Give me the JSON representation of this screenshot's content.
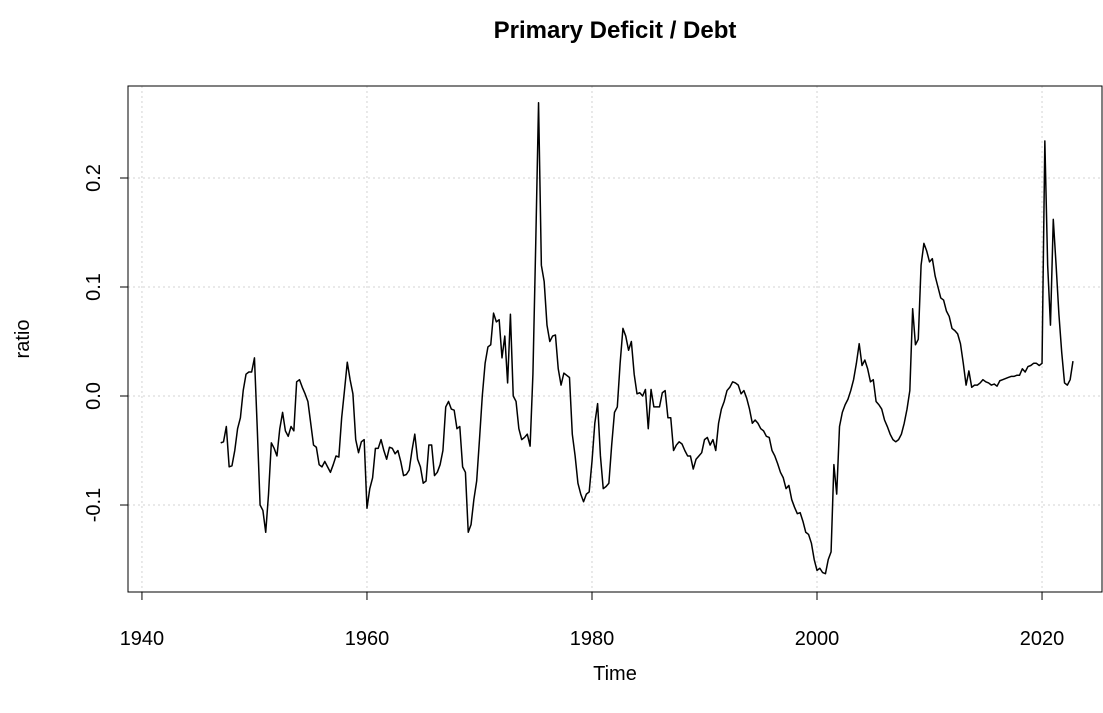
{
  "chart_data": {
    "type": "line",
    "title": "Primary Deficit / Debt",
    "x_label": "Time",
    "y_label": "ratio",
    "color": "#000000",
    "grid": true,
    "xlim": [
      1938.76,
      2025.33
    ],
    "ylim": [
      -0.1798,
      0.2844
    ],
    "xticks": [
      1940,
      1960,
      1980,
      2000,
      2020
    ],
    "yticks": [
      -0.1,
      {
        "value": 0,
        "label": "0.0"
      },
      0.1,
      0.2
    ],
    "x": [
      1947,
      1947.25,
      1947.5,
      1947.75,
      1948,
      1948.25,
      1948.5,
      1948.75,
      1949,
      1949.25,
      1949.5,
      1949.75,
      1950,
      1950.25,
      1950.5,
      1950.75,
      1951,
      1951.25,
      1951.5,
      1951.75,
      1952,
      1952.25,
      1952.5,
      1952.75,
      1953,
      1953.25,
      1953.5,
      1953.75,
      1954,
      1954.25,
      1954.5,
      1954.75,
      1955,
      1955.25,
      1955.5,
      1955.75,
      1956,
      1956.25,
      1956.5,
      1956.75,
      1957,
      1957.25,
      1957.5,
      1957.75,
      1958,
      1958.25,
      1958.5,
      1958.75,
      1959,
      1959.25,
      1959.5,
      1959.75,
      1960,
      1960.25,
      1960.5,
      1960.75,
      1961,
      1961.25,
      1961.5,
      1961.75,
      1962,
      1962.25,
      1962.5,
      1962.75,
      1963,
      1963.25,
      1963.5,
      1963.75,
      1964,
      1964.25,
      1964.5,
      1964.75,
      1965,
      1965.25,
      1965.5,
      1965.75,
      1966,
      1966.25,
      1966.5,
      1966.75,
      1967,
      1967.25,
      1967.5,
      1967.75,
      1968,
      1968.25,
      1968.5,
      1968.75,
      1969,
      1969.25,
      1969.5,
      1969.75,
      1970,
      1970.25,
      1970.5,
      1970.75,
      1971,
      1971.25,
      1971.5,
      1971.75,
      1972,
      1972.25,
      1972.5,
      1972.75,
      1973,
      1973.25,
      1973.5,
      1973.75,
      1974,
      1974.25,
      1974.5,
      1974.75,
      1975,
      1975.25,
      1975.5,
      1975.75,
      1976,
      1976.25,
      1976.5,
      1976.75,
      1977,
      1977.25,
      1977.5,
      1977.75,
      1978,
      1978.25,
      1978.5,
      1978.75,
      1979,
      1979.25,
      1979.5,
      1979.75,
      1980,
      1980.25,
      1980.5,
      1980.75,
      1981,
      1981.25,
      1981.5,
      1981.75,
      1982,
      1982.25,
      1982.5,
      1982.75,
      1983,
      1983.25,
      1983.5,
      1983.75,
      1984,
      1984.25,
      1984.5,
      1984.75,
      1985,
      1985.25,
      1985.5,
      1985.75,
      1986,
      1986.25,
      1986.5,
      1986.75,
      1987,
      1987.25,
      1987.5,
      1987.75,
      1988,
      1988.25,
      1988.5,
      1988.75,
      1989,
      1989.25,
      1989.5,
      1989.75,
      1990,
      1990.25,
      1990.5,
      1990.75,
      1991,
      1991.25,
      1991.5,
      1991.75,
      1992,
      1992.25,
      1992.5,
      1992.75,
      1993,
      1993.25,
      1993.5,
      1993.75,
      1994,
      1994.25,
      1994.5,
      1994.75,
      1995,
      1995.25,
      1995.5,
      1995.75,
      1996,
      1996.25,
      1996.5,
      1996.75,
      1997,
      1997.25,
      1997.5,
      1997.75,
      1998,
      1998.25,
      1998.5,
      1998.75,
      1999,
      1999.25,
      1999.5,
      1999.75,
      2000,
      2000.25,
      2000.5,
      2000.75,
      2001,
      2001.25,
      2001.5,
      2001.75,
      2002,
      2002.25,
      2002.5,
      2002.75,
      2003,
      2003.25,
      2003.5,
      2003.75,
      2004,
      2004.25,
      2004.5,
      2004.75,
      2005,
      2005.25,
      2005.5,
      2005.75,
      2006,
      2006.25,
      2006.5,
      2006.75,
      2007,
      2007.25,
      2007.5,
      2007.75,
      2008,
      2008.25,
      2008.5,
      2008.75,
      2009,
      2009.25,
      2009.5,
      2009.75,
      2010,
      2010.25,
      2010.5,
      2010.75,
      2011,
      2011.25,
      2011.5,
      2011.75,
      2012,
      2012.25,
      2012.5,
      2012.75,
      2013,
      2013.25,
      2013.5,
      2013.75,
      2014,
      2014.25,
      2014.5,
      2014.75,
      2015,
      2015.25,
      2015.5,
      2015.75,
      2016,
      2016.25,
      2016.5,
      2016.75,
      2017,
      2017.25,
      2017.5,
      2017.75,
      2018,
      2018.25,
      2018.5,
      2018.75,
      2019,
      2019.25,
      2019.5,
      2019.75,
      2020,
      2020.25,
      2020.5,
      2020.75,
      2021,
      2021.25,
      2021.5,
      2021.75,
      2022,
      2022.25,
      2022.5,
      2022.75
    ],
    "values": [
      -0.043,
      -0.042,
      -0.028,
      -0.065,
      -0.064,
      -0.05,
      -0.03,
      -0.02,
      0.005,
      0.02,
      0.022,
      0.022,
      0.035,
      -0.03,
      -0.1,
      -0.105,
      -0.125,
      -0.09,
      -0.043,
      -0.048,
      -0.055,
      -0.03,
      -0.015,
      -0.032,
      -0.037,
      -0.028,
      -0.032,
      0.013,
      0.015,
      0.008,
      0.002,
      -0.005,
      -0.025,
      -0.045,
      -0.047,
      -0.063,
      -0.065,
      -0.06,
      -0.065,
      -0.07,
      -0.063,
      -0.055,
      -0.056,
      -0.02,
      0.005,
      0.031,
      0.015,
      0.002,
      -0.04,
      -0.052,
      -0.042,
      -0.04,
      -0.103,
      -0.085,
      -0.075,
      -0.048,
      -0.048,
      -0.04,
      -0.05,
      -0.058,
      -0.047,
      -0.048,
      -0.053,
      -0.05,
      -0.06,
      -0.073,
      -0.072,
      -0.068,
      -0.05,
      -0.035,
      -0.058,
      -0.065,
      -0.08,
      -0.078,
      -0.045,
      -0.045,
      -0.073,
      -0.07,
      -0.063,
      -0.05,
      -0.01,
      -0.005,
      -0.012,
      -0.013,
      -0.03,
      -0.028,
      -0.065,
      -0.07,
      -0.125,
      -0.118,
      -0.095,
      -0.078,
      -0.04,
      0.0,
      0.03,
      0.045,
      0.047,
      0.076,
      0.068,
      0.07,
      0.035,
      0.055,
      0.012,
      0.075,
      0.0,
      -0.005,
      -0.03,
      -0.04,
      -0.038,
      -0.035,
      -0.046,
      0.02,
      0.14,
      0.269,
      0.12,
      0.105,
      0.065,
      0.05,
      0.055,
      0.056,
      0.025,
      0.01,
      0.021,
      0.019,
      0.017,
      -0.035,
      -0.055,
      -0.08,
      -0.09,
      -0.097,
      -0.09,
      -0.088,
      -0.06,
      -0.025,
      -0.007,
      -0.055,
      -0.085,
      -0.083,
      -0.08,
      -0.045,
      -0.015,
      -0.01,
      0.03,
      0.062,
      0.055,
      0.042,
      0.05,
      0.02,
      0.002,
      0.003,
      0.0,
      0.006,
      -0.03,
      0.006,
      -0.01,
      -0.01,
      -0.01,
      0.003,
      0.005,
      -0.02,
      -0.02,
      -0.05,
      -0.045,
      -0.042,
      -0.044,
      -0.05,
      -0.055,
      -0.055,
      -0.067,
      -0.058,
      -0.055,
      -0.052,
      -0.04,
      -0.038,
      -0.045,
      -0.04,
      -0.05,
      -0.025,
      -0.012,
      -0.005,
      0.005,
      0.008,
      0.013,
      0.012,
      0.01,
      0.002,
      0.005,
      -0.002,
      -0.012,
      -0.025,
      -0.022,
      -0.025,
      -0.03,
      -0.032,
      -0.037,
      -0.038,
      -0.05,
      -0.055,
      -0.062,
      -0.07,
      -0.075,
      -0.085,
      -0.082,
      -0.095,
      -0.102,
      -0.108,
      -0.107,
      -0.115,
      -0.125,
      -0.127,
      -0.135,
      -0.15,
      -0.16,
      -0.158,
      -0.162,
      -0.163,
      -0.15,
      -0.143,
      -0.063,
      -0.09,
      -0.028,
      -0.015,
      -0.008,
      -0.003,
      0.005,
      0.015,
      0.03,
      0.048,
      0.028,
      0.033,
      0.025,
      0.013,
      0.015,
      -0.005,
      -0.008,
      -0.012,
      -0.022,
      -0.028,
      -0.035,
      -0.04,
      -0.042,
      -0.04,
      -0.035,
      -0.025,
      -0.012,
      0.005,
      0.08,
      0.047,
      0.052,
      0.12,
      0.14,
      0.133,
      0.123,
      0.126,
      0.11,
      0.1,
      0.09,
      0.088,
      0.078,
      0.073,
      0.062,
      0.06,
      0.057,
      0.048,
      0.03,
      0.01,
      0.023,
      0.008,
      0.01,
      0.01,
      0.012,
      0.015,
      0.013,
      0.012,
      0.01,
      0.011,
      0.009,
      0.014,
      0.015,
      0.016,
      0.017,
      0.018,
      0.018,
      0.019,
      0.019,
      0.025,
      0.022,
      0.027,
      0.028,
      0.03,
      0.03,
      0.028,
      0.03,
      0.234,
      0.12,
      0.065,
      0.162,
      0.12,
      0.075,
      0.04,
      0.012,
      0.01,
      0.015,
      0.032
    ]
  }
}
